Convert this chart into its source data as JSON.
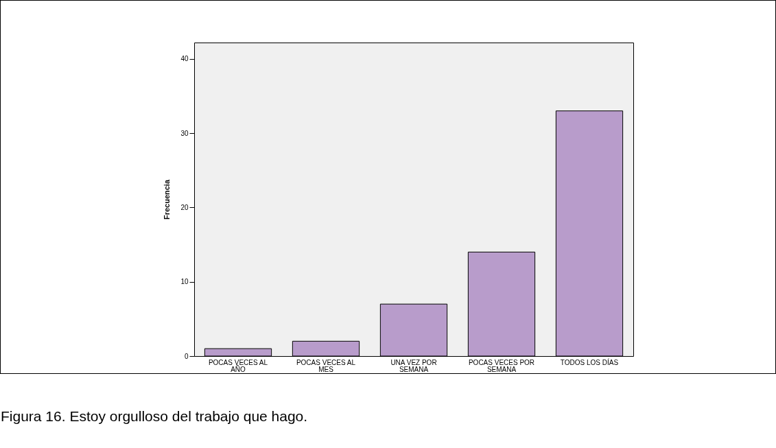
{
  "chart_data": {
    "type": "bar",
    "ylabel": "Frecuencia",
    "categories": [
      "POCAS VECES AL AÑO",
      "POCAS VECES AL MES",
      "UNA VEZ POR SEMANA",
      "POCAS VECES POR SEMANA",
      "TODOS LOS DÍAS"
    ],
    "values": [
      1,
      2,
      7,
      14,
      33
    ],
    "color": "#b89ccb",
    "ylim": [
      0,
      42.2
    ],
    "yticks": [
      0,
      10,
      20,
      30,
      40
    ],
    "grid": false,
    "annotations": [
      "Figura 16. Estoy orgulloso del trabajo que hago."
    ]
  }
}
